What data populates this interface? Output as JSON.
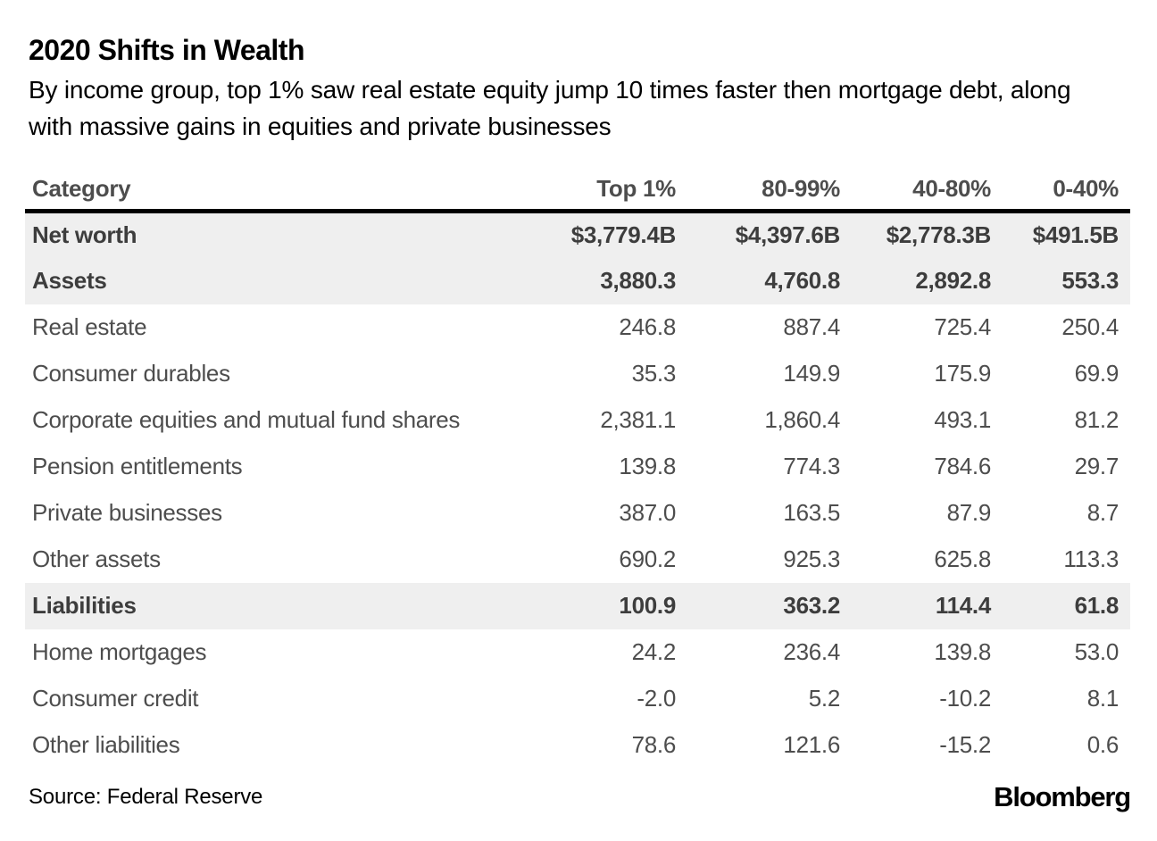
{
  "header": {
    "title": "2020 Shifts in Wealth",
    "subtitle": "By income group, top 1% saw real estate equity jump 10 times faster then mortgage debt, along with massive gains in equities and private businesses"
  },
  "table": {
    "columns": [
      "Category",
      "Top 1%",
      "80-99%",
      "40-80%",
      "0-40%"
    ],
    "rows": [
      {
        "label": "Net worth",
        "values": [
          "$3,779.4B",
          "$4,397.6B",
          "$2,778.3B",
          "$491.5B"
        ],
        "emphasis": true
      },
      {
        "label": "Assets",
        "values": [
          "3,880.3",
          "4,760.8",
          "2,892.8",
          "553.3"
        ],
        "emphasis": true
      },
      {
        "label": "Real estate",
        "values": [
          "246.8",
          "887.4",
          "725.4",
          "250.4"
        ],
        "emphasis": false
      },
      {
        "label": "Consumer durables",
        "values": [
          "35.3",
          "149.9",
          "175.9",
          "69.9"
        ],
        "emphasis": false
      },
      {
        "label": "Corporate equities and mutual fund shares",
        "values": [
          "2,381.1",
          "1,860.4",
          "493.1",
          "81.2"
        ],
        "emphasis": false
      },
      {
        "label": "Pension entitlements",
        "values": [
          "139.8",
          "774.3",
          "784.6",
          "29.7"
        ],
        "emphasis": false
      },
      {
        "label": "Private businesses",
        "values": [
          "387.0",
          "163.5",
          "87.9",
          "8.7"
        ],
        "emphasis": false
      },
      {
        "label": "Other assets",
        "values": [
          "690.2",
          "925.3",
          "625.8",
          "113.3"
        ],
        "emphasis": false
      },
      {
        "label": "Liabilities",
        "values": [
          "100.9",
          "363.2",
          "114.4",
          "61.8"
        ],
        "emphasis": true
      },
      {
        "label": "Home mortgages",
        "values": [
          "24.2",
          "236.4",
          "139.8",
          "53.0"
        ],
        "emphasis": false
      },
      {
        "label": "Consumer credit",
        "values": [
          "-2.0",
          "5.2",
          "-10.2",
          "8.1"
        ],
        "emphasis": false
      },
      {
        "label": "Other liabilities",
        "values": [
          "78.6",
          "121.6",
          "-15.2",
          "0.6"
        ],
        "emphasis": false
      }
    ]
  },
  "footer": {
    "source": "Source: Federal Reserve",
    "brand": "Bloomberg"
  },
  "colors": {
    "emphasis_row_bg": "#efefef",
    "header_rule": "#000000",
    "title_text": "#000000",
    "table_text": "#4d4d4d",
    "emphasis_text": "#3d3d3d"
  },
  "chart_data": {
    "type": "table",
    "title": "2020 Shifts in Wealth",
    "subtitle": "By income group, top 1% saw real estate equity jump 10 times faster then mortgage debt, along with massive gains in equities and private businesses",
    "columns": [
      "Top 1%",
      "80-99%",
      "40-80%",
      "0-40%"
    ],
    "unit_hint": "$B",
    "rows": [
      {
        "category": "Net worth",
        "values": [
          3779.4,
          4397.6,
          2778.3,
          491.5
        ],
        "emphasis": true
      },
      {
        "category": "Assets",
        "values": [
          3880.3,
          4760.8,
          2892.8,
          553.3
        ],
        "emphasis": true
      },
      {
        "category": "Real estate",
        "values": [
          246.8,
          887.4,
          725.4,
          250.4
        ],
        "emphasis": false
      },
      {
        "category": "Consumer durables",
        "values": [
          35.3,
          149.9,
          175.9,
          69.9
        ],
        "emphasis": false
      },
      {
        "category": "Corporate equities and mutual fund shares",
        "values": [
          2381.1,
          1860.4,
          493.1,
          81.2
        ],
        "emphasis": false
      },
      {
        "category": "Pension entitlements",
        "values": [
          139.8,
          774.3,
          784.6,
          29.7
        ],
        "emphasis": false
      },
      {
        "category": "Private businesses",
        "values": [
          387.0,
          163.5,
          87.9,
          8.7
        ],
        "emphasis": false
      },
      {
        "category": "Other assets",
        "values": [
          690.2,
          925.3,
          625.8,
          113.3
        ],
        "emphasis": false
      },
      {
        "category": "Liabilities",
        "values": [
          100.9,
          363.2,
          114.4,
          61.8
        ],
        "emphasis": true
      },
      {
        "category": "Home mortgages",
        "values": [
          24.2,
          236.4,
          139.8,
          53.0
        ],
        "emphasis": false
      },
      {
        "category": "Consumer credit",
        "values": [
          -2.0,
          5.2,
          -10.2,
          8.1
        ],
        "emphasis": false
      },
      {
        "category": "Other liabilities",
        "values": [
          78.6,
          121.6,
          -15.2,
          0.6
        ],
        "emphasis": false
      }
    ],
    "source": "Federal Reserve"
  }
}
